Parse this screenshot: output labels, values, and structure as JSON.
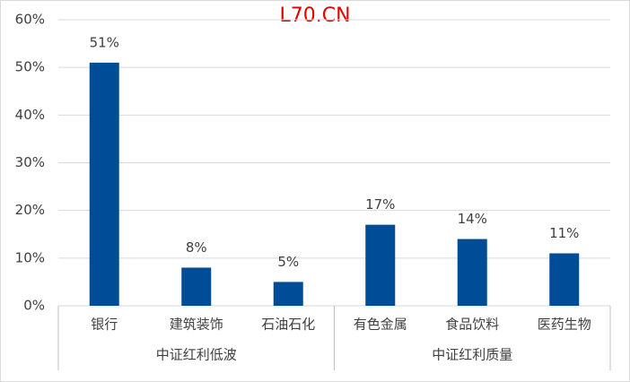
{
  "chart_data": {
    "type": "bar",
    "watermark": "L70.CN",
    "groups": [
      {
        "name": "中证红利低波",
        "categories": [
          "银行",
          "建筑装饰",
          "石油石化"
        ]
      },
      {
        "name": "中证红利质量",
        "categories": [
          "有色金属",
          "食品饮料",
          "医药生物"
        ]
      }
    ],
    "values": [
      51,
      8,
      5,
      17,
      14,
      11
    ],
    "value_labels": [
      "51%",
      "8%",
      "5%",
      "17%",
      "14%",
      "11%"
    ],
    "color": "#004c97",
    "ylim": [
      0,
      60
    ],
    "yticks": [
      {
        "value": 0,
        "label": "0%"
      },
      {
        "value": 10,
        "label": "10%"
      },
      {
        "value": 20,
        "label": "20%"
      },
      {
        "value": 30,
        "label": "30%"
      },
      {
        "value": 40,
        "label": "40%"
      },
      {
        "value": 50,
        "label": "50%"
      },
      {
        "value": 60,
        "label": "60%"
      }
    ],
    "grid": true
  }
}
